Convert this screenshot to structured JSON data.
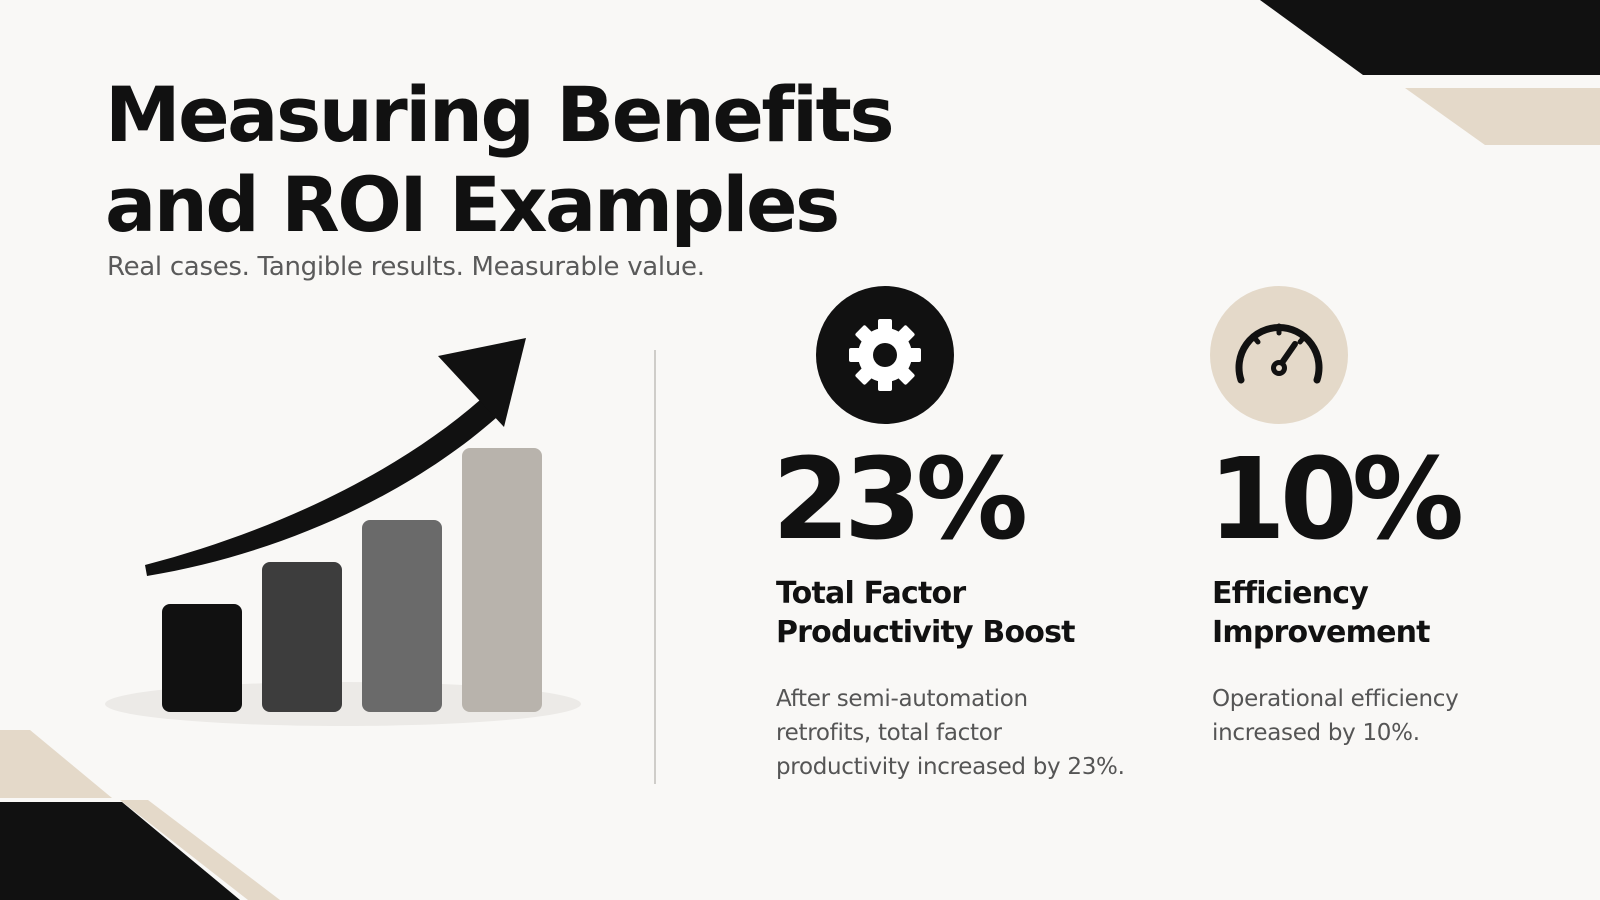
{
  "slide": {
    "title_line1": "Measuring Benefits",
    "title_line2": "and ROI Examples",
    "subtitle": "Real cases. Tangible results. Measurable value."
  },
  "stats": [
    {
      "icon": "gear-icon",
      "value": "23%",
      "label_line1": "Total Factor",
      "label_line2": "Productivity Boost",
      "desc_line1": "After semi-automation",
      "desc_line2": "retrofits, total factor",
      "desc_line3": "productivity increased by 23%."
    },
    {
      "icon": "speedometer-icon",
      "value": "10%",
      "label_line1": "Efficiency",
      "label_line2": "Improvement",
      "desc_line1": "Operational efficiency",
      "desc_line2": "increased by 10%."
    }
  ],
  "growth_graphic": {
    "bars": 4,
    "bar_colors": [
      "#111111",
      "#3d3d3d",
      "#6a6a6a",
      "#b8b3ac"
    ],
    "arrow_color": "#111111"
  },
  "colors": {
    "background": "#f9f8f6",
    "accent_beige": "#e4d9c9",
    "dark": "#111111",
    "gear_circle": "#111111",
    "speedometer_circle": "#e4d9c9"
  }
}
